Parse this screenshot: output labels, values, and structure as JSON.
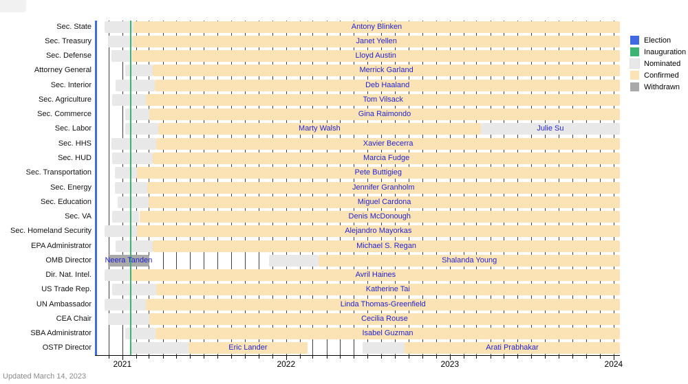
{
  "footer": {
    "updated": "Updated March 14, 2023"
  },
  "colors": {
    "election": "#4169E1",
    "inauguration": "#3CB371",
    "nominated": "#e8e8e8",
    "confirmed": "#fce3b5",
    "withdrawn": "#a9a9a9",
    "name_text": "#2222cc",
    "gridline": "#3d3d3d"
  },
  "chart_data": {
    "type": "gantt-timeline",
    "title": "",
    "x_axis": {
      "start": "2020-11-01",
      "end": "2024-01-15",
      "year_tick_labels": [
        "2021",
        "2022",
        "2023",
        "2024"
      ],
      "year_tick_dates": [
        "2021-01-01",
        "2022-01-01",
        "2023-01-01",
        "2024-01-01"
      ],
      "minor_tick_unit": "month"
    },
    "events": [
      {
        "label": "Election",
        "date": "2020-11-03",
        "color": "#4169E1"
      },
      {
        "label": "Inauguration",
        "date": "2021-01-20",
        "color": "#3CB371"
      }
    ],
    "legend": [
      {
        "label": "Election",
        "color": "#4169E1"
      },
      {
        "label": "Inauguration",
        "color": "#3CB371"
      },
      {
        "label": "Nominated",
        "color": "#e8e8e8"
      },
      {
        "label": "Confirmed",
        "color": "#fce3b5"
      },
      {
        "label": "Withdrawn",
        "color": "#a9a9a9"
      }
    ],
    "rows": [
      {
        "position": "Sec. State",
        "segments": [
          {
            "type": "nominated",
            "start": "2020-11-23",
            "end": "2021-01-26"
          },
          {
            "type": "confirmed",
            "start": "2021-01-26",
            "end": "2024-01-15",
            "label": "Antony Blinken"
          }
        ]
      },
      {
        "position": "Sec. Treasury",
        "segments": [
          {
            "type": "nominated",
            "start": "2020-11-30",
            "end": "2021-01-25"
          },
          {
            "type": "confirmed",
            "start": "2021-01-25",
            "end": "2024-01-15",
            "label": "Janet Yellen"
          }
        ]
      },
      {
        "position": "Sec. Defense",
        "segments": [
          {
            "type": "nominated",
            "start": "2020-12-08",
            "end": "2021-01-22"
          },
          {
            "type": "confirmed",
            "start": "2021-01-22",
            "end": "2024-01-15",
            "label": "Lloyd Austin"
          }
        ]
      },
      {
        "position": "Attorney General",
        "segments": [
          {
            "type": "nominated",
            "start": "2021-01-07",
            "end": "2021-03-10"
          },
          {
            "type": "confirmed",
            "start": "2021-03-10",
            "end": "2024-01-15",
            "label": "Merrick Garland"
          }
        ]
      },
      {
        "position": "Sec. Interior",
        "segments": [
          {
            "type": "nominated",
            "start": "2020-12-17",
            "end": "2021-03-15"
          },
          {
            "type": "confirmed",
            "start": "2021-03-15",
            "end": "2024-01-15",
            "label": "Deb Haaland"
          }
        ]
      },
      {
        "position": "Sec. Agriculture",
        "segments": [
          {
            "type": "nominated",
            "start": "2020-12-10",
            "end": "2021-02-23"
          },
          {
            "type": "confirmed",
            "start": "2021-02-23",
            "end": "2024-01-15",
            "label": "Tom Vilsack"
          }
        ]
      },
      {
        "position": "Sec. Commerce",
        "segments": [
          {
            "type": "nominated",
            "start": "2021-01-07",
            "end": "2021-03-02"
          },
          {
            "type": "confirmed",
            "start": "2021-03-02",
            "end": "2024-01-15",
            "label": "Gina Raimondo"
          }
        ]
      },
      {
        "position": "Sec. Labor",
        "segments": [
          {
            "type": "nominated",
            "start": "2021-01-07",
            "end": "2021-03-22"
          },
          {
            "type": "confirmed",
            "start": "2021-03-22",
            "end": "2023-03-11",
            "label": "Marty Walsh"
          },
          {
            "type": "nominated",
            "start": "2023-03-11",
            "end": "2024-01-15",
            "label": "Julie Su"
          }
        ]
      },
      {
        "position": "Sec. HHS",
        "segments": [
          {
            "type": "nominated",
            "start": "2020-12-07",
            "end": "2021-03-18"
          },
          {
            "type": "confirmed",
            "start": "2021-03-18",
            "end": "2024-01-15",
            "label": "Xavier Becerra"
          }
        ]
      },
      {
        "position": "Sec. HUD",
        "segments": [
          {
            "type": "nominated",
            "start": "2020-12-10",
            "end": "2021-03-10"
          },
          {
            "type": "confirmed",
            "start": "2021-03-10",
            "end": "2024-01-15",
            "label": "Marcia Fudge"
          }
        ]
      },
      {
        "position": "Sec. Transportation",
        "segments": [
          {
            "type": "nominated",
            "start": "2020-12-15",
            "end": "2021-02-02"
          },
          {
            "type": "confirmed",
            "start": "2021-02-02",
            "end": "2024-01-15",
            "label": "Pete Buttigieg"
          }
        ]
      },
      {
        "position": "Sec. Energy",
        "segments": [
          {
            "type": "nominated",
            "start": "2020-12-15",
            "end": "2021-02-25"
          },
          {
            "type": "confirmed",
            "start": "2021-02-25",
            "end": "2024-01-15",
            "label": "Jennifer Granholm"
          }
        ]
      },
      {
        "position": "Sec. Education",
        "segments": [
          {
            "type": "nominated",
            "start": "2020-12-22",
            "end": "2021-03-01"
          },
          {
            "type": "confirmed",
            "start": "2021-03-01",
            "end": "2024-01-15",
            "label": "Miguel Cardona"
          }
        ]
      },
      {
        "position": "Sec. VA",
        "segments": [
          {
            "type": "nominated",
            "start": "2020-12-10",
            "end": "2021-02-08"
          },
          {
            "type": "confirmed",
            "start": "2021-02-08",
            "end": "2024-01-15",
            "label": "Denis McDonough"
          }
        ]
      },
      {
        "position": "Sec. Homeland Security",
        "segments": [
          {
            "type": "nominated",
            "start": "2020-11-23",
            "end": "2021-02-02"
          },
          {
            "type": "confirmed",
            "start": "2021-02-02",
            "end": "2024-01-15",
            "label": "Alejandro Mayorkas"
          }
        ]
      },
      {
        "position": "EPA Administrator",
        "segments": [
          {
            "type": "nominated",
            "start": "2020-12-17",
            "end": "2021-03-10"
          },
          {
            "type": "confirmed",
            "start": "2021-03-10",
            "end": "2024-01-15",
            "label": "Michael S. Regan"
          }
        ]
      },
      {
        "position": "OMB Director",
        "segments": [
          {
            "type": "withdrawn",
            "start": "2020-11-30",
            "end": "2021-03-02",
            "label": "Neera Tanden"
          },
          {
            "type": "nominated",
            "start": "2021-11-24",
            "end": "2022-03-15"
          },
          {
            "type": "confirmed",
            "start": "2022-03-15",
            "end": "2024-01-15",
            "label": "Shalanda Young"
          }
        ]
      },
      {
        "position": "Dir. Nat. Intel.",
        "segments": [
          {
            "type": "nominated",
            "start": "2020-11-23",
            "end": "2021-01-21"
          },
          {
            "type": "confirmed",
            "start": "2021-01-21",
            "end": "2024-01-15",
            "label": "Avril Haines"
          }
        ]
      },
      {
        "position": "US Trade Rep.",
        "segments": [
          {
            "type": "nominated",
            "start": "2020-12-10",
            "end": "2021-03-17"
          },
          {
            "type": "confirmed",
            "start": "2021-03-17",
            "end": "2024-01-15",
            "label": "Katherine Tai"
          }
        ]
      },
      {
        "position": "UN Ambassador",
        "segments": [
          {
            "type": "nominated",
            "start": "2020-11-23",
            "end": "2021-02-23"
          },
          {
            "type": "confirmed",
            "start": "2021-02-23",
            "end": "2024-01-15",
            "label": "Linda Thomas-Greenfield"
          }
        ]
      },
      {
        "position": "CEA Chair",
        "segments": [
          {
            "type": "nominated",
            "start": "2020-11-30",
            "end": "2021-03-02"
          },
          {
            "type": "confirmed",
            "start": "2021-03-02",
            "end": "2024-01-15",
            "label": "Cecilia Rouse"
          }
        ]
      },
      {
        "position": "SBA Administrator",
        "segments": [
          {
            "type": "nominated",
            "start": "2021-01-07",
            "end": "2021-03-16"
          },
          {
            "type": "confirmed",
            "start": "2021-03-16",
            "end": "2024-01-15",
            "label": "Isabel Guzman"
          }
        ]
      },
      {
        "position": "OSTP Director",
        "segments": [
          {
            "type": "nominated",
            "start": "2021-01-20",
            "end": "2021-05-28"
          },
          {
            "type": "confirmed",
            "start": "2021-05-28",
            "end": "2022-02-18",
            "label": "Eric Lander"
          },
          {
            "type": "nominated",
            "start": "2022-06-21",
            "end": "2022-09-22"
          },
          {
            "type": "confirmed",
            "start": "2022-09-22",
            "end": "2024-01-15",
            "label": "Arati Prabhakar"
          }
        ]
      }
    ]
  }
}
